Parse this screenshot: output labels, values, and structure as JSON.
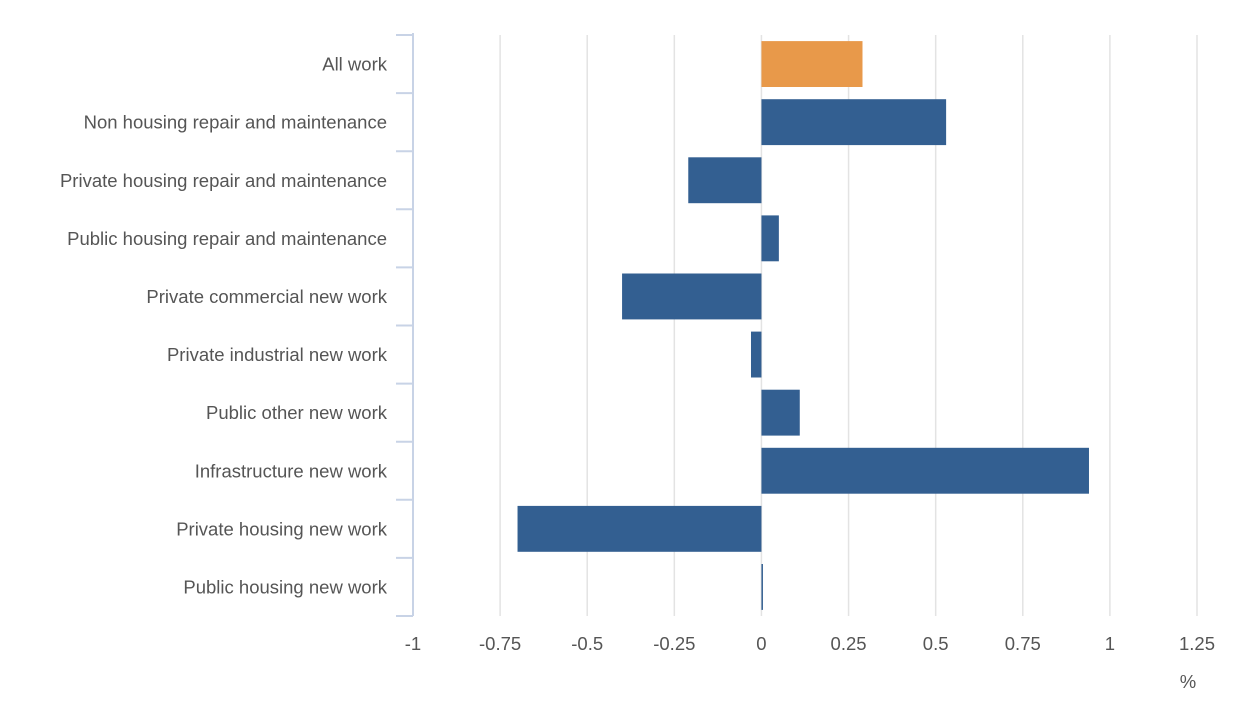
{
  "chart_data": {
    "type": "bar",
    "orientation": "horizontal",
    "categories": [
      "All work",
      "Non housing repair and maintenance",
      "Private housing repair and maintenance",
      "Public housing repair and maintenance",
      "Private commercial new work",
      "Private industrial new work",
      "Public other new work",
      "Infrastructure new work",
      "Private housing new work",
      "Public housing new work"
    ],
    "values": [
      0.29,
      0.53,
      -0.21,
      0.05,
      -0.4,
      -0.03,
      0.11,
      0.94,
      -0.7,
      0.0
    ],
    "highlight_index": 0,
    "colors": {
      "highlight": "#E8994A",
      "default": "#335F91"
    },
    "xlim": [
      -1,
      1.25
    ],
    "xticks": [
      -1,
      -0.75,
      -0.5,
      -0.25,
      0,
      0.25,
      0.5,
      0.75,
      1,
      1.25
    ],
    "xtick_labels": [
      "-1",
      "-0.75",
      "-0.5",
      "-0.25",
      "0",
      "0.25",
      "0.5",
      "0.75",
      "1",
      "1.25"
    ],
    "unit_label": "%",
    "grid": "vertical",
    "legend": "none"
  }
}
